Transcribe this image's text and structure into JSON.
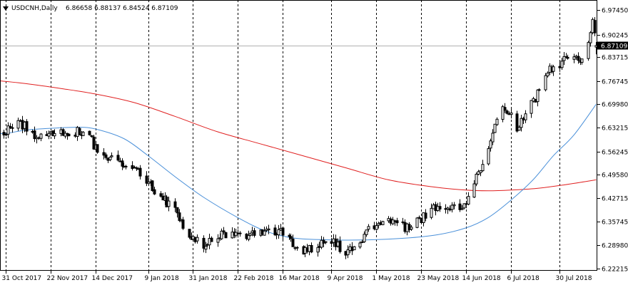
{
  "header": {
    "symbol": "USDCNH,Daily",
    "ohlc": "6.86658 6.88137 6.84524 6.87109"
  },
  "price_tag": "6.87109",
  "chart_data": {
    "type": "candlestick",
    "symbol": "USDCNH",
    "timeframe": "Daily",
    "last_bar": {
      "open": 6.86658,
      "high": 6.88137,
      "low": 6.84524,
      "close": 6.87109
    },
    "current_price": 6.87109,
    "ylim": [
      6.2215,
      6.9745
    ],
    "y_ticks": [
      "6.97450",
      "6.90245",
      "6.83715",
      "6.76745",
      "6.69980",
      "6.63215",
      "6.56245",
      "6.49580",
      "6.42715",
      "6.35745",
      "6.28980",
      "6.22215"
    ],
    "x_ticks": [
      "31 Oct 2017",
      "22 Nov 2017",
      "14 Dec 2017",
      "9 Jan 2018",
      "31 Jan 2018",
      "22 Feb 2018",
      "16 Mar 2018",
      "9 Apr 2018",
      "1 May 2018",
      "23 May 2018",
      "14 Jun 2018",
      "6 Jul 2018",
      "30 Jul 2018"
    ],
    "vertical_grid": "dashed",
    "colors": {
      "background": "#ffffff",
      "candles": "#000000",
      "ma_fast": "#4a90d9",
      "ma_slow": "#e02020",
      "price_line": "#b0b0b0"
    },
    "close_path": [
      [
        "2017-10-25",
        6.63
      ],
      [
        "2017-10-31",
        6.62
      ],
      [
        "2017-11-06",
        6.645
      ],
      [
        "2017-11-10",
        6.63
      ],
      [
        "2017-11-14",
        6.6
      ],
      [
        "2017-11-20",
        6.61
      ],
      [
        "2017-11-27",
        6.615
      ],
      [
        "2017-12-05",
        6.62
      ],
      [
        "2017-12-11",
        6.6
      ],
      [
        "2017-12-14",
        6.575
      ],
      [
        "2017-12-19",
        6.55
      ],
      [
        "2017-12-26",
        6.52
      ],
      [
        "2018-01-02",
        6.52
      ],
      [
        "2018-01-05",
        6.49
      ],
      [
        "2018-01-09",
        6.48
      ],
      [
        "2018-01-12",
        6.44
      ],
      [
        "2018-01-17",
        6.42
      ],
      [
        "2018-01-22",
        6.4
      ],
      [
        "2018-01-26",
        6.35
      ],
      [
        "2018-01-31",
        6.31
      ],
      [
        "2018-02-05",
        6.29
      ],
      [
        "2018-02-08",
        6.31
      ],
      [
        "2018-02-13",
        6.32
      ],
      [
        "2018-02-19",
        6.32
      ],
      [
        "2018-02-22",
        6.33
      ],
      [
        "2018-02-27",
        6.32
      ],
      [
        "2018-03-06",
        6.33
      ],
      [
        "2018-03-12",
        6.33
      ],
      [
        "2018-03-16",
        6.33
      ],
      [
        "2018-03-21",
        6.3
      ],
      [
        "2018-03-26",
        6.27
      ],
      [
        "2018-03-30",
        6.28
      ],
      [
        "2018-04-04",
        6.29
      ],
      [
        "2018-04-09",
        6.3
      ],
      [
        "2018-04-13",
        6.28
      ],
      [
        "2018-04-18",
        6.27
      ],
      [
        "2018-04-23",
        6.29
      ],
      [
        "2018-04-27",
        6.33
      ],
      [
        "2018-05-01",
        6.35
      ],
      [
        "2018-05-07",
        6.36
      ],
      [
        "2018-05-11",
        6.35
      ],
      [
        "2018-05-16",
        6.34
      ],
      [
        "2018-05-21",
        6.36
      ],
      [
        "2018-05-25",
        6.38
      ],
      [
        "2018-05-29",
        6.4
      ],
      [
        "2018-06-01",
        6.41
      ],
      [
        "2018-06-05",
        6.4
      ],
      [
        "2018-06-08",
        6.395
      ],
      [
        "2018-06-12",
        6.4
      ],
      [
        "2018-06-14",
        6.42
      ],
      [
        "2018-06-18",
        6.48
      ],
      [
        "2018-06-21",
        6.52
      ],
      [
        "2018-06-25",
        6.56
      ],
      [
        "2018-06-28",
        6.64
      ],
      [
        "2018-07-02",
        6.68
      ],
      [
        "2018-07-04",
        6.68
      ],
      [
        "2018-07-09",
        6.63
      ],
      [
        "2018-07-12",
        6.66
      ],
      [
        "2018-07-16",
        6.7
      ],
      [
        "2018-07-19",
        6.73
      ],
      [
        "2018-07-23",
        6.79
      ],
      [
        "2018-07-26",
        6.8
      ],
      [
        "2018-07-30",
        6.82
      ],
      [
        "2018-08-02",
        6.84
      ],
      [
        "2018-08-06",
        6.85
      ],
      [
        "2018-08-09",
        6.83
      ],
      [
        "2018-08-13",
        6.88
      ],
      [
        "2018-08-15",
        6.94
      ],
      [
        "2018-08-17",
        6.87
      ]
    ],
    "series": [
      {
        "line": "ma_fast",
        "points": [
          [
            "2017-10-25",
            6.615
          ],
          [
            "2017-10-31",
            6.615
          ],
          [
            "2017-11-10",
            6.625
          ],
          [
            "2017-11-22",
            6.63
          ],
          [
            "2017-12-05",
            6.633
          ],
          [
            "2017-12-14",
            6.628
          ],
          [
            "2017-12-28",
            6.6
          ],
          [
            "2018-01-09",
            6.55
          ],
          [
            "2018-01-22",
            6.49
          ],
          [
            "2018-02-05",
            6.43
          ],
          [
            "2018-02-22",
            6.37
          ],
          [
            "2018-03-08",
            6.33
          ],
          [
            "2018-03-22",
            6.31
          ],
          [
            "2018-04-09",
            6.305
          ],
          [
            "2018-04-26",
            6.305
          ],
          [
            "2018-05-15",
            6.31
          ],
          [
            "2018-05-31",
            6.32
          ],
          [
            "2018-06-14",
            6.34
          ],
          [
            "2018-06-25",
            6.37
          ],
          [
            "2018-07-06",
            6.42
          ],
          [
            "2018-07-17",
            6.48
          ],
          [
            "2018-07-27",
            6.55
          ],
          [
            "2018-08-06",
            6.61
          ],
          [
            "2018-08-17",
            6.7
          ]
        ]
      },
      {
        "line": "ma_slow",
        "points": [
          [
            "2017-10-25",
            6.77
          ],
          [
            "2017-11-10",
            6.76
          ],
          [
            "2017-11-28",
            6.745
          ],
          [
            "2017-12-14",
            6.73
          ],
          [
            "2018-01-02",
            6.705
          ],
          [
            "2018-01-22",
            6.665
          ],
          [
            "2018-02-12",
            6.62
          ],
          [
            "2018-03-05",
            6.585
          ],
          [
            "2018-03-26",
            6.55
          ],
          [
            "2018-04-16",
            6.515
          ],
          [
            "2018-05-07",
            6.48
          ],
          [
            "2018-05-28",
            6.46
          ],
          [
            "2018-06-14",
            6.45
          ],
          [
            "2018-06-25",
            6.448
          ],
          [
            "2018-07-06",
            6.45
          ],
          [
            "2018-07-19",
            6.455
          ],
          [
            "2018-08-01",
            6.465
          ],
          [
            "2018-08-17",
            6.48
          ]
        ]
      }
    ]
  }
}
